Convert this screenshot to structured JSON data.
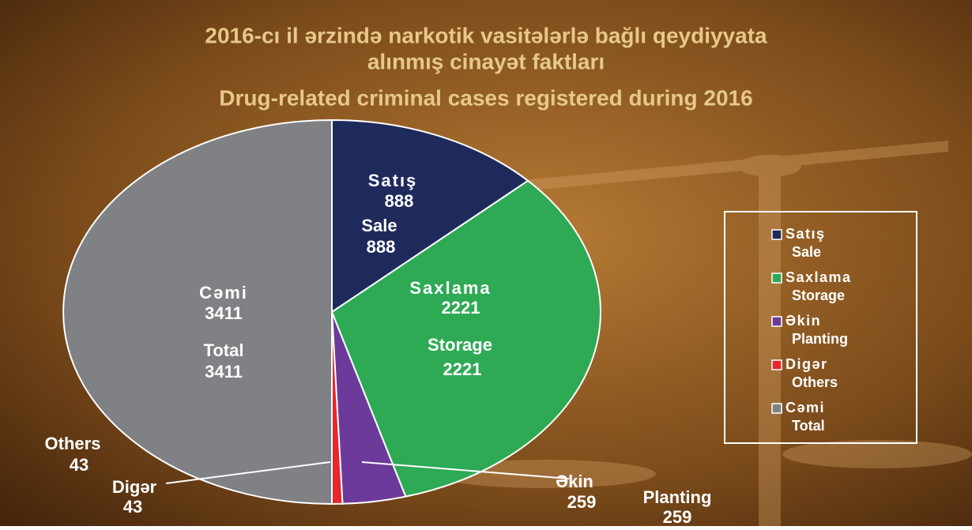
{
  "chart_data": {
    "type": "pie",
    "title": "2016-cı il ərzində narkotik vasitələrlə bağlı qeydiyyata",
    "title_line2": "alınmış cinayət faktları",
    "subtitle": "Drug-related criminal cases registered during 2016",
    "categories": [
      "Satış",
      "Saxlama",
      "Əkin",
      "Digər",
      "Cəmi"
    ],
    "categories_en": [
      "Sale",
      "Storage",
      "Planting",
      "Others",
      "Total"
    ],
    "values": [
      888,
      2221,
      259,
      43,
      3411
    ],
    "colors": [
      "#1f2a5c",
      "#2eaa55",
      "#6c3a9a",
      "#e8262b",
      "#808184"
    ]
  }
}
